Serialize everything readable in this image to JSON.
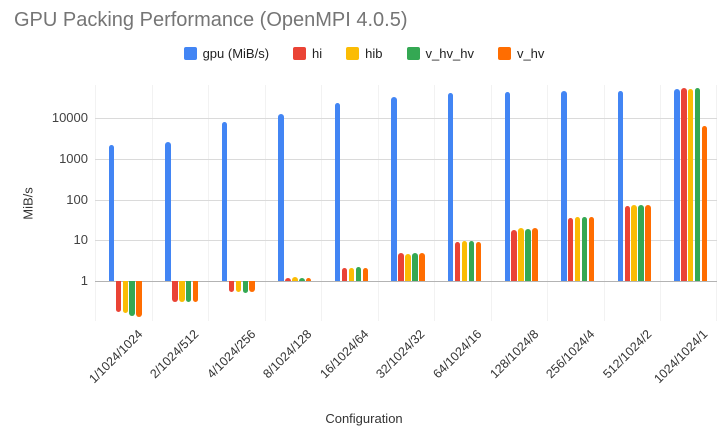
{
  "chart_data": {
    "type": "bar",
    "title": "GPU Packing Performance (OpenMPI 4.0.5)",
    "xlabel": "Configuration",
    "ylabel": "MiB/s",
    "y_scale": "log",
    "y_ticks": [
      1,
      10,
      100,
      1000,
      10000
    ],
    "ylim": [
      0.1,
      63000
    ],
    "grid": true,
    "legend_position": "top",
    "categories": [
      "1/1024/1024",
      "2/1024/512",
      "4/1024/256",
      "8/1024/128",
      "16/1024/64",
      "32/1024/32",
      "64/1024/16",
      "128/1024/8",
      "256/1024/4",
      "512/1024/2",
      "1024/1024/1"
    ],
    "series": [
      {
        "name": "gpu (MiB/s)",
        "color": "#4285F4",
        "values": [
          2200,
          2550,
          8100,
          12300,
          22800,
          33000,
          40000,
          44000,
          46500,
          45500,
          51000
        ]
      },
      {
        "name": "hi",
        "color": "#EA4335",
        "values": [
          0.17,
          0.31,
          0.55,
          1.2,
          2.1,
          4.9,
          9.1,
          18,
          36,
          70,
          54000
        ]
      },
      {
        "name": "hib",
        "color": "#FBBC04",
        "values": [
          0.16,
          0.3,
          0.55,
          1.25,
          2.1,
          4.6,
          9.5,
          20,
          38,
          75,
          51000
        ]
      },
      {
        "name": "v_hv_hv",
        "color": "#34A853",
        "values": [
          0.14,
          0.3,
          0.52,
          1.2,
          2.2,
          4.8,
          9.7,
          19,
          38,
          72,
          56000
        ]
      },
      {
        "name": "v_hv",
        "color": "#FF6D01",
        "values": [
          0.13,
          0.31,
          0.55,
          1.2,
          2.1,
          4.9,
          9.1,
          20,
          38,
          75,
          6400
        ]
      }
    ]
  }
}
